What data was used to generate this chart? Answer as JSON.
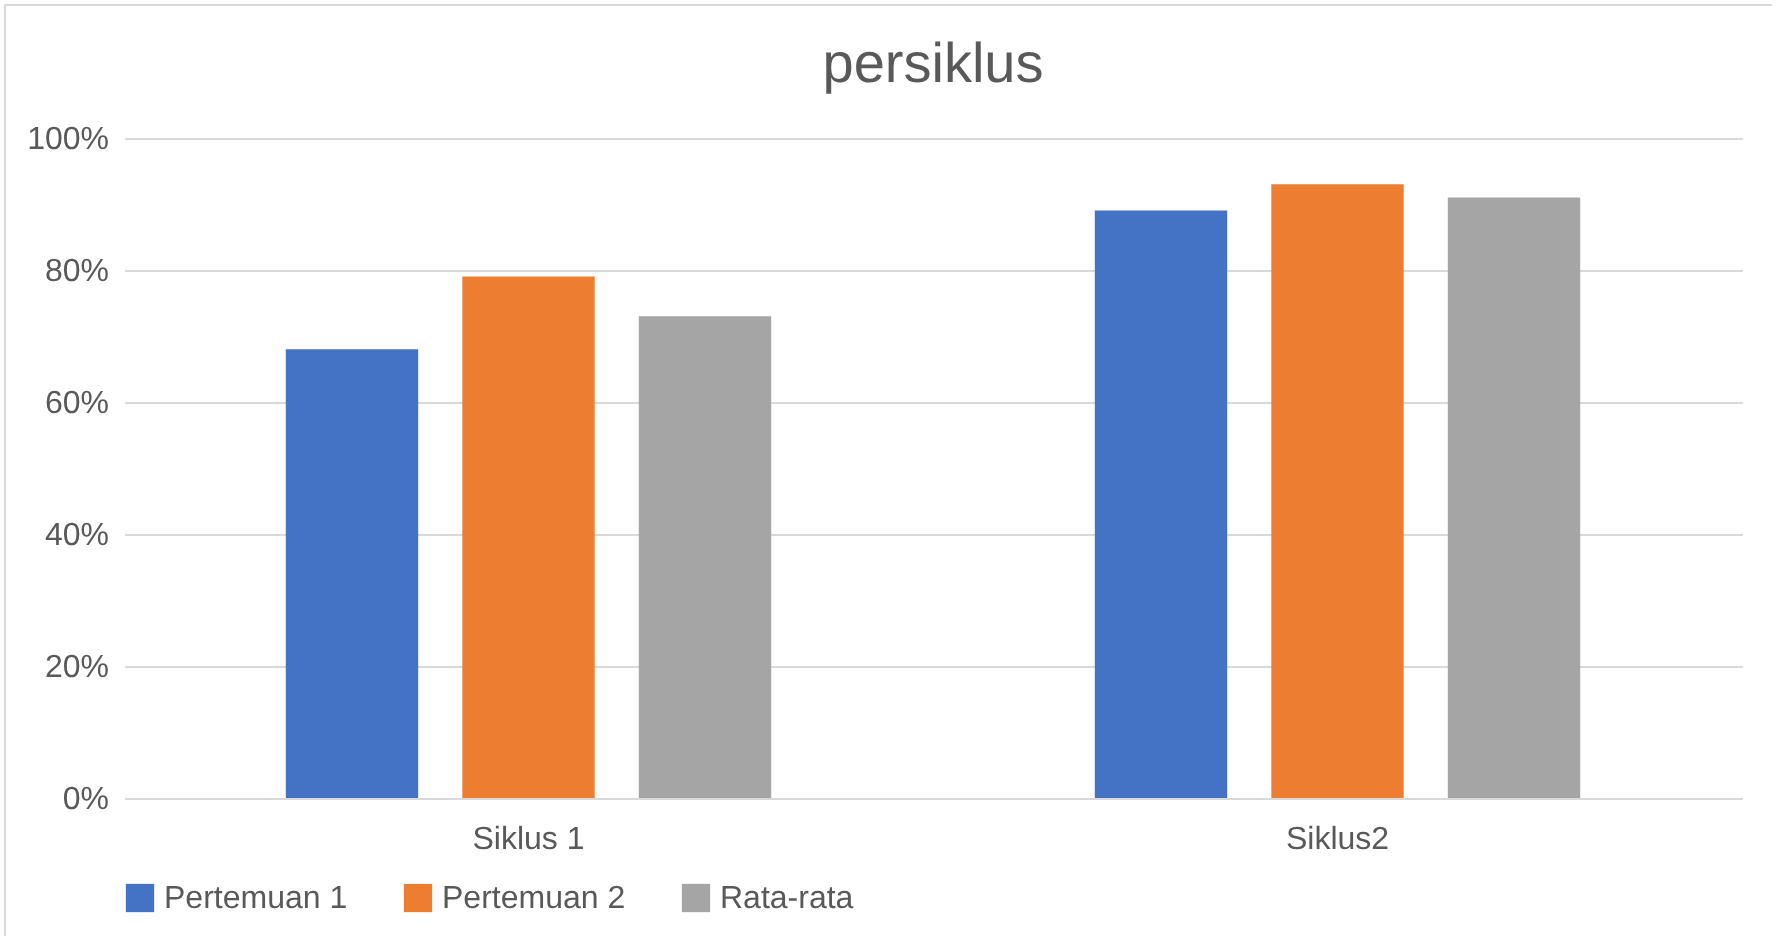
{
  "chart_data": {
    "type": "bar",
    "title": "persiklus",
    "categories": [
      "Siklus 1",
      "Siklus2"
    ],
    "series": [
      {
        "name": "Pertemuan  1",
        "color": "#4472c4",
        "values": [
          68,
          89
        ]
      },
      {
        "name": "Pertemuan  2",
        "color": "#ed7d31",
        "values": [
          79,
          93
        ]
      },
      {
        "name": "Rata-rata",
        "color": "#a5a5a5",
        "values": [
          73,
          91
        ]
      }
    ],
    "ylim": [
      0,
      100
    ],
    "yticks": [
      {
        "value": 0,
        "label": "0%"
      },
      {
        "value": 20,
        "label": "20%"
      },
      {
        "value": 40,
        "label": "40%"
      },
      {
        "value": 60,
        "label": "60%"
      },
      {
        "value": 80,
        "label": "80%"
      },
      {
        "value": 100,
        "label": "100%"
      }
    ],
    "grid": "y",
    "legend": "bottom"
  }
}
